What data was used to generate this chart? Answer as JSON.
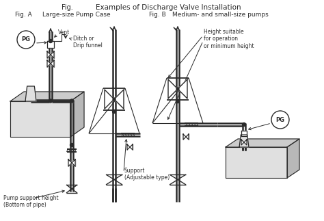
{
  "title_left": "Fig.",
  "title_right": "Examples of Discharge Valve Installation",
  "fig_a_label": "Fig. A",
  "fig_a_title": "Large-size Pump Case",
  "fig_b_label": "Fig. B",
  "fig_b_title": "Medium- and small-size pumps",
  "annotation_vent": "Vent",
  "annotation_ditch": "Ditch or\nDrip funnel",
  "annotation_pump_support": "Pump support height\n(Bottom of pipe)",
  "annotation_support": "Support\n(Adjustable type)",
  "annotation_height": "Height suitable\nfor operation\nor minimum height",
  "bg_color": "#ffffff",
  "line_color": "#2a2a2a",
  "gray1": "#e0e0e0",
  "gray2": "#cccccc",
  "gray3": "#b8b8b8"
}
